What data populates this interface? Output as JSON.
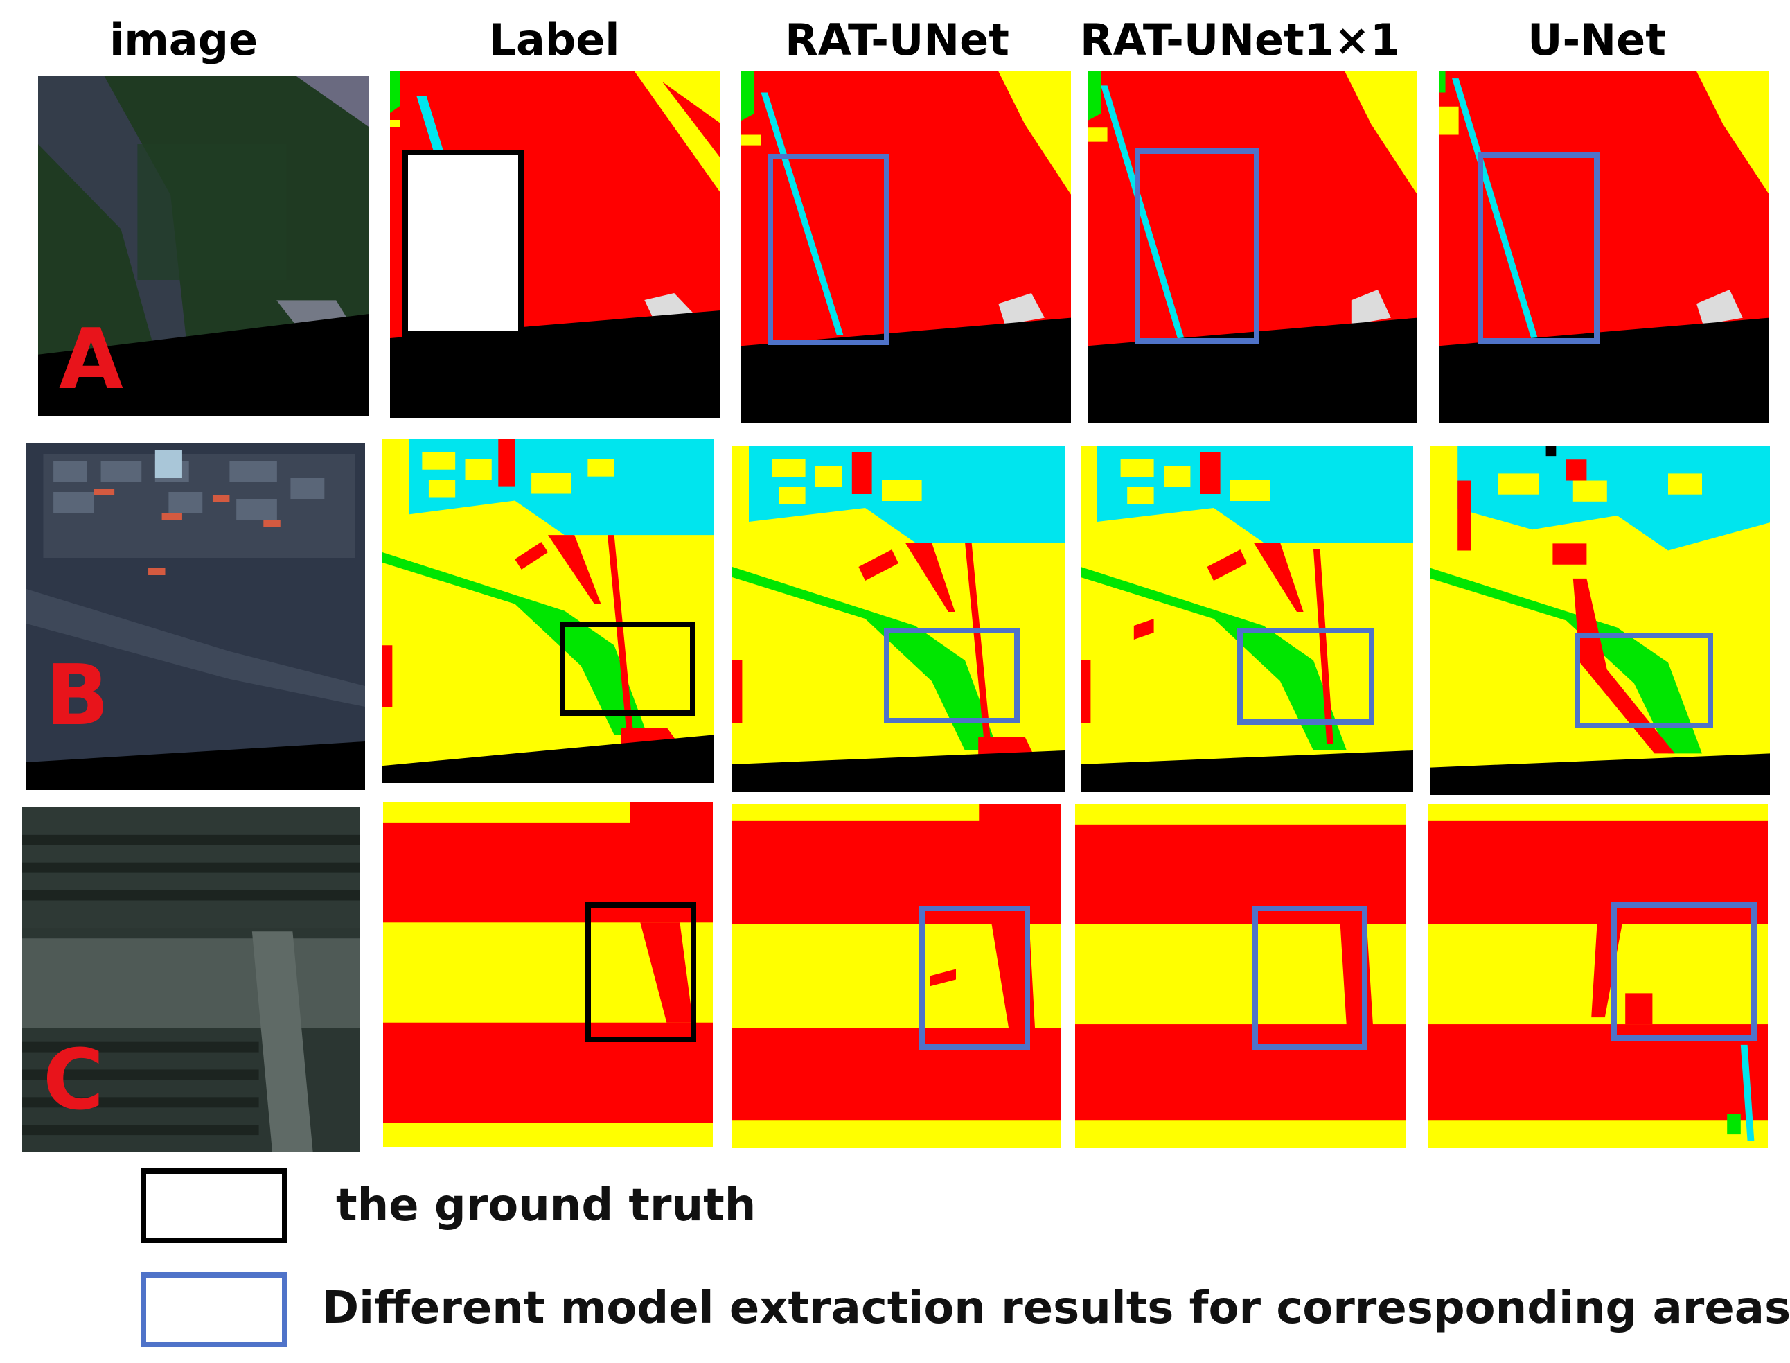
{
  "headers": {
    "image": "image",
    "label": "Label",
    "rat_unet": "RAT-UNet",
    "rat_unet_1x1": "RAT-UNet1×1",
    "unet": "U-Net"
  },
  "rows": {
    "a": "A",
    "b": "B",
    "c": "C"
  },
  "legend": {
    "ground_truth": "the ground truth",
    "model_results": "Different model extraction results for corresponding areas"
  },
  "colors": {
    "red": "#ff0000",
    "yellow": "#ffff00",
    "cyan": "#00e5ee",
    "green": "#00e600",
    "black": "#000000",
    "white_patch": "#dcdcdc",
    "ground_truth_box": "#000000",
    "model_box": "#4f73c9",
    "row_letter": "#e8141b"
  }
}
